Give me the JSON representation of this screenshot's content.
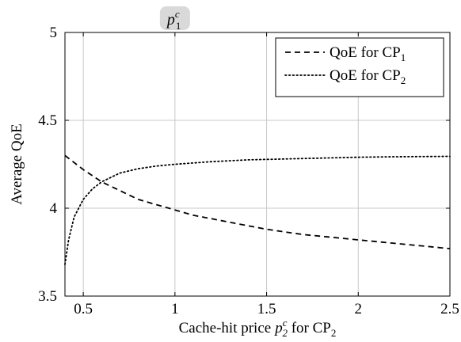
{
  "chart_data": {
    "type": "line",
    "xlabel": "Cache-hit price",
    "xlabel_symbol": "p",
    "xlabel_sup": "c",
    "xlabel_sub": "2",
    "xlabel_suffix": " for CP",
    "xlabel_suffix_sub": "2",
    "ylabel": "Average QoE",
    "xlim": [
      0.4,
      2.5
    ],
    "ylim": [
      3.5,
      5
    ],
    "xticks": [
      0.5,
      1,
      1.5,
      2,
      2.5
    ],
    "xtick_labels": [
      "0.5",
      "1",
      "1.5",
      "2",
      "2.5"
    ],
    "yticks": [
      3.5,
      4,
      4.5,
      5
    ],
    "ytick_labels": [
      "3.5",
      "4",
      "4.5",
      "5"
    ],
    "grid": true,
    "legend_position": "top-right",
    "annotation": {
      "symbol": "p",
      "sup": "c",
      "sub": "1",
      "x": 1,
      "background": "#d9d9d9"
    },
    "series": [
      {
        "name": "QoE for CP",
        "name_sub": "1",
        "style": "dashed",
        "color": "#000000",
        "x": [
          0.4,
          0.5,
          0.6,
          0.7,
          0.8,
          0.9,
          1.0,
          1.1,
          1.2,
          1.3,
          1.4,
          1.5,
          1.6,
          1.7,
          1.8,
          1.9,
          2.0,
          2.1,
          2.2,
          2.3,
          2.4,
          2.5
        ],
        "y": [
          4.3,
          4.22,
          4.15,
          4.1,
          4.05,
          4.02,
          3.99,
          3.96,
          3.94,
          3.92,
          3.9,
          3.88,
          3.865,
          3.85,
          3.84,
          3.83,
          3.82,
          3.81,
          3.8,
          3.79,
          3.78,
          3.77
        ]
      },
      {
        "name": "QoE for CP",
        "name_sub": "2",
        "style": "dotted",
        "color": "#000000",
        "x": [
          0.4,
          0.42,
          0.45,
          0.5,
          0.55,
          0.6,
          0.7,
          0.8,
          0.9,
          1.0,
          1.2,
          1.4,
          1.6,
          1.8,
          2.0,
          2.2,
          2.5
        ],
        "y": [
          3.68,
          3.82,
          3.95,
          4.05,
          4.11,
          4.15,
          4.2,
          4.225,
          4.24,
          4.25,
          4.265,
          4.275,
          4.28,
          4.285,
          4.29,
          4.293,
          4.295
        ]
      }
    ]
  }
}
